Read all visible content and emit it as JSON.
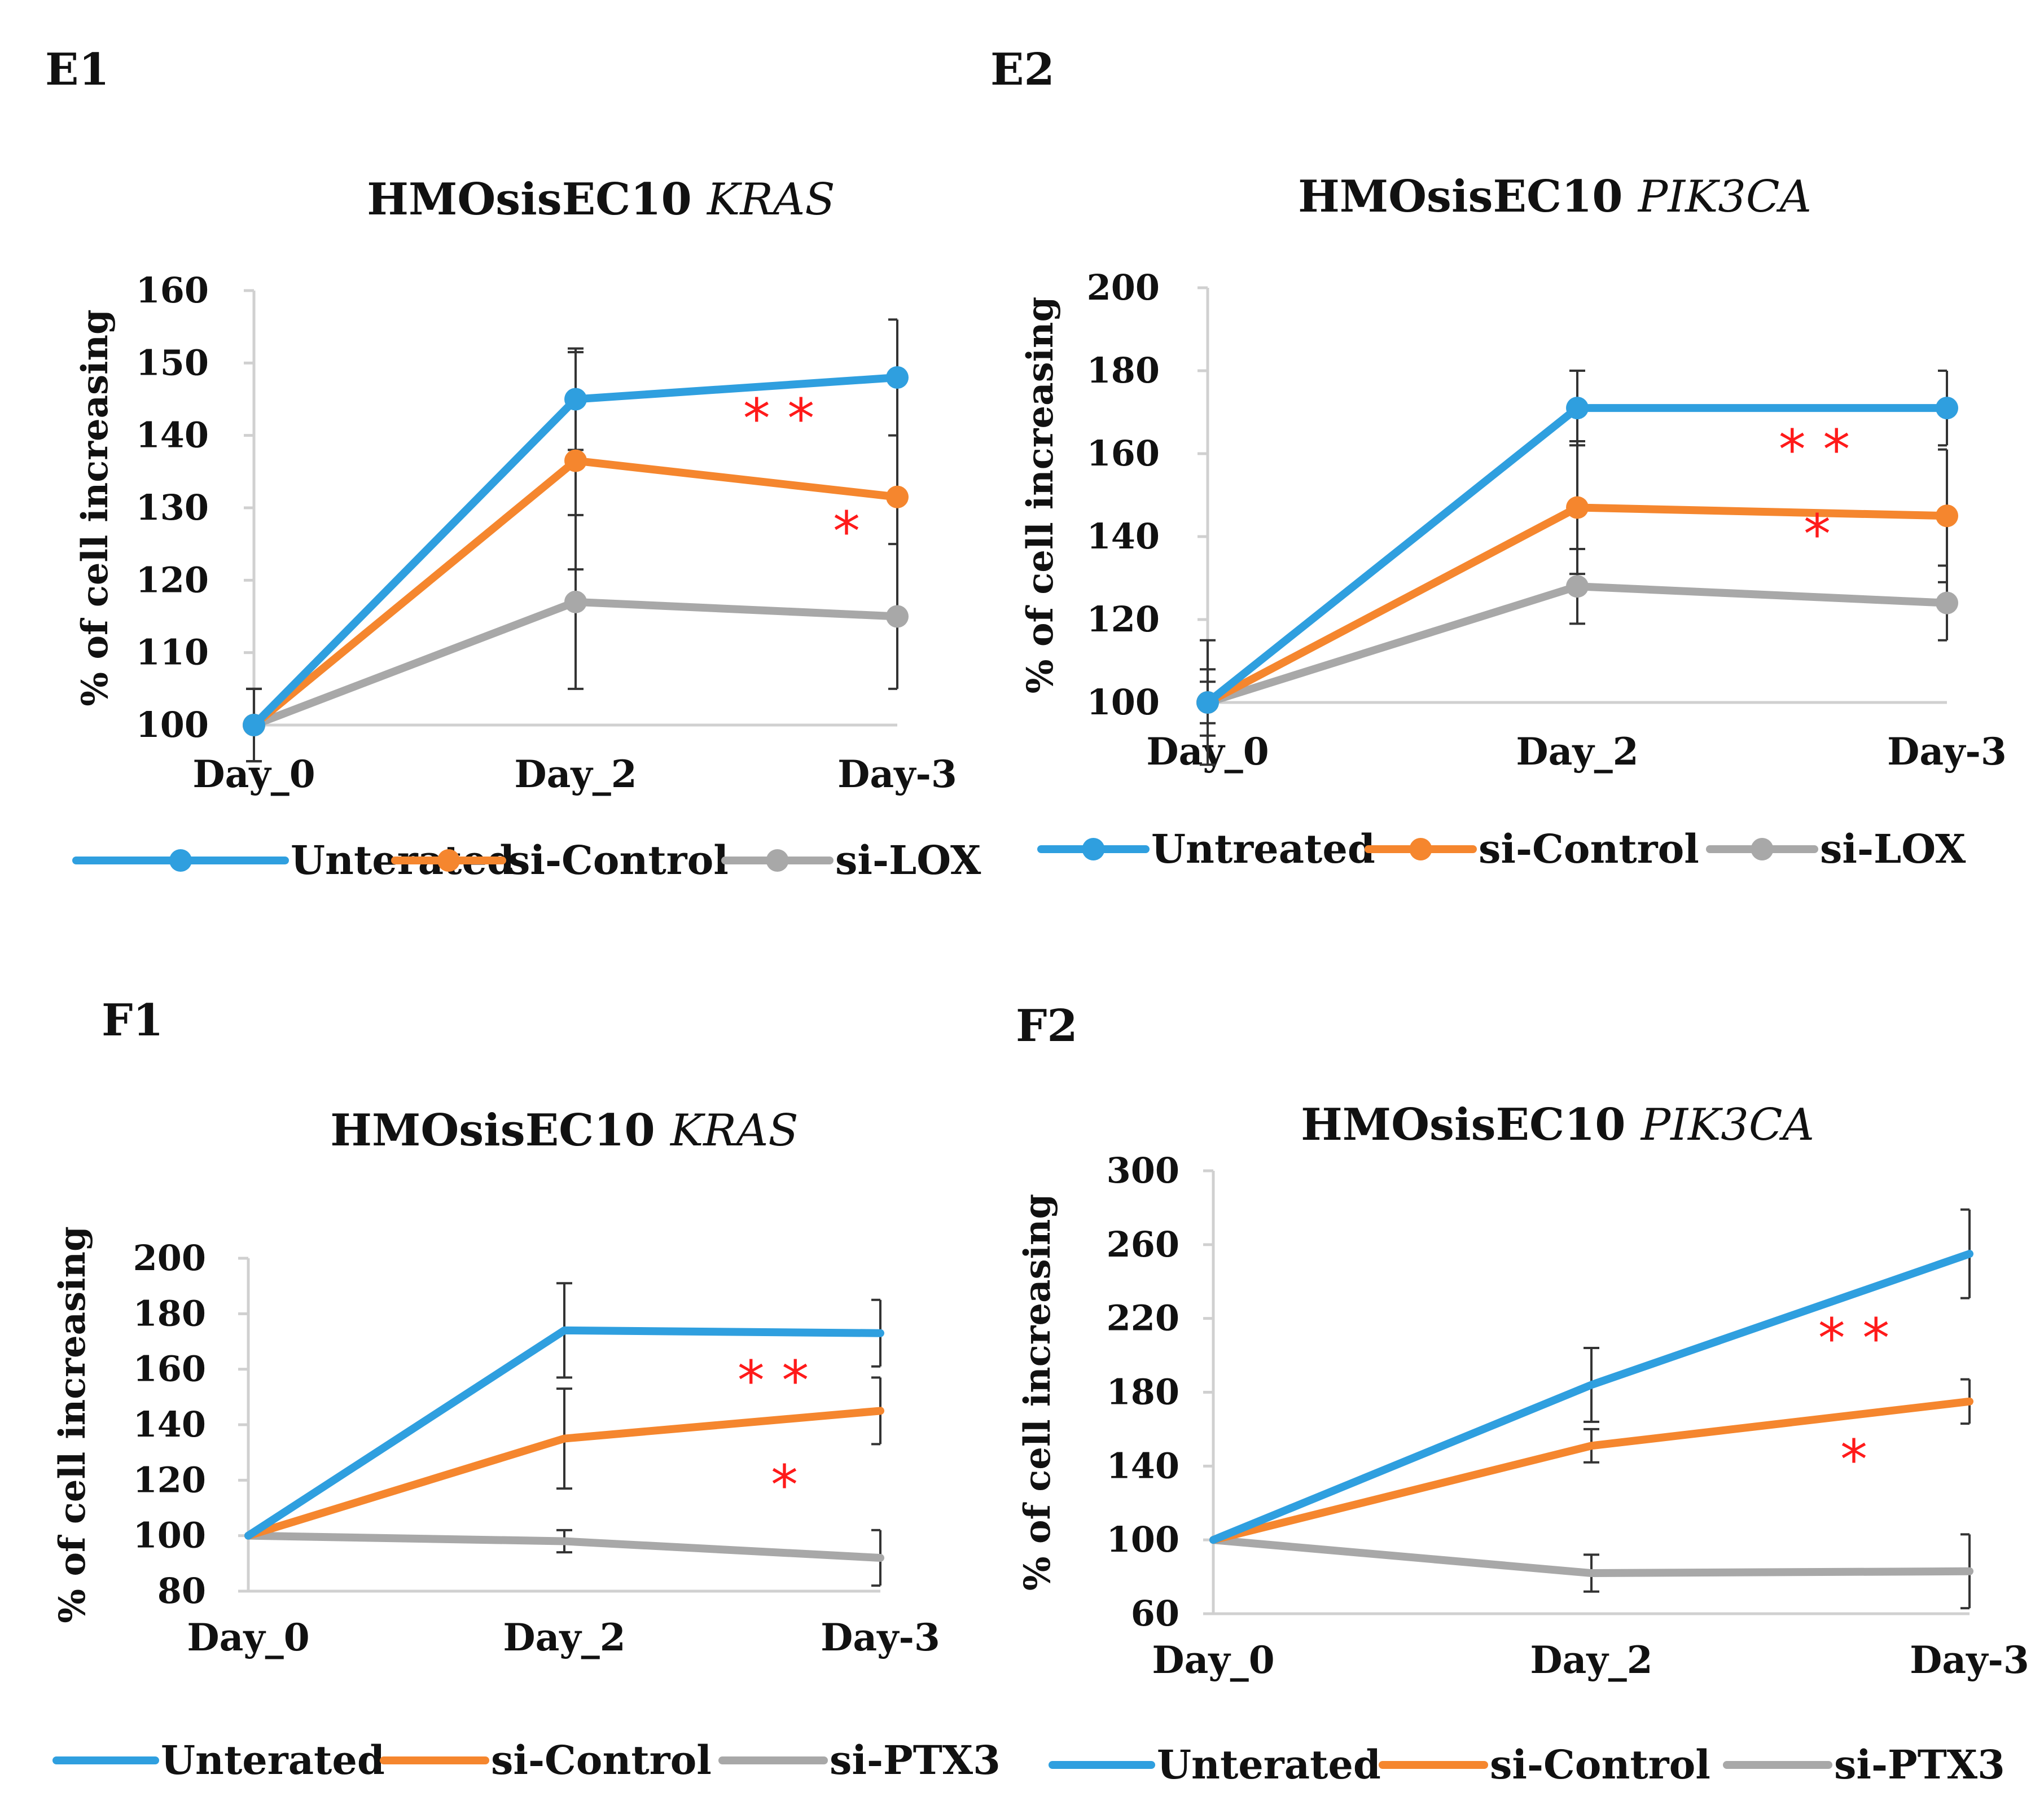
{
  "chart_data": [
    {
      "panel": "E1",
      "type": "line",
      "title": "HMOsisEC10",
      "title_gene": "KRAS",
      "ylabel": "% of cell increasing",
      "xlabel": "",
      "categories": [
        "Day_0",
        "Day_2",
        "Day-3"
      ],
      "ylim": [
        100,
        160
      ],
      "yticks": [
        100,
        110,
        120,
        130,
        140,
        150,
        160
      ],
      "markers": true,
      "series": [
        {
          "name": "Unterated",
          "color": "#2f9fdf",
          "values": [
            100,
            145,
            148
          ],
          "errors": [
            5,
            7,
            8
          ]
        },
        {
          "name": "si-Control",
          "color": "#f5862e",
          "values": [
            100,
            136.5,
            131.5
          ],
          "errors": [
            5,
            15,
            17
          ]
        },
        {
          "name": "si-LOX",
          "color": "#a8a8a8",
          "values": [
            100,
            117,
            115
          ],
          "errors": [
            5,
            12,
            10
          ]
        }
      ],
      "annotations": [
        "* *",
        "*"
      ]
    },
    {
      "panel": "E2",
      "type": "line",
      "title": "HMOsisEC10",
      "title_gene": "PIK3CA",
      "ylabel": "% of cell increasing",
      "xlabel": "",
      "categories": [
        "Day_0",
        "Day_2",
        "Day-3"
      ],
      "ylim": [
        100,
        200
      ],
      "yticks": [
        100,
        120,
        140,
        160,
        180,
        200
      ],
      "markers": true,
      "series": [
        {
          "name": "Untreated",
          "color": "#2f9fdf",
          "values": [
            100,
            171,
            171
          ],
          "errors": [
            15,
            9,
            9
          ]
        },
        {
          "name": "si-Control",
          "color": "#f5862e",
          "values": [
            100,
            147,
            145
          ],
          "errors": [
            8,
            16,
            16
          ]
        },
        {
          "name": "si-LOX",
          "color": "#a8a8a8",
          "values": [
            100,
            128,
            124
          ],
          "errors": [
            5,
            9,
            9
          ]
        }
      ],
      "annotations": [
        "* *",
        "*"
      ]
    },
    {
      "panel": "F1",
      "type": "line",
      "title": "HMOsisEC10",
      "title_gene": "KRAS",
      "ylabel": "% of cell increasing",
      "xlabel": "",
      "categories": [
        "Day_0",
        "Day_2",
        "Day-3"
      ],
      "ylim": [
        80,
        200
      ],
      "yticks": [
        80,
        100,
        120,
        140,
        160,
        180,
        200
      ],
      "markers": false,
      "series": [
        {
          "name": "Unterated",
          "color": "#2f9fdf",
          "values": [
            100,
            174,
            173
          ],
          "errors": [
            0,
            17,
            12
          ]
        },
        {
          "name": "si-Control",
          "color": "#f5862e",
          "values": [
            100,
            135,
            145
          ],
          "errors": [
            0,
            18,
            12
          ]
        },
        {
          "name": "si-PTX3",
          "color": "#a8a8a8",
          "values": [
            100,
            98,
            92
          ],
          "errors": [
            0,
            4,
            10
          ]
        }
      ],
      "annotations": [
        "* *",
        "*"
      ]
    },
    {
      "panel": "F2",
      "type": "line",
      "title": "HMOsisEC10",
      "title_gene": "PIK3CA",
      "ylabel": "% of cell increasing",
      "xlabel": "",
      "categories": [
        "Day_0",
        "Day_2",
        "Day-3"
      ],
      "ylim": [
        60,
        300
      ],
      "yticks": [
        60,
        100,
        140,
        180,
        220,
        260,
        300
      ],
      "markers": false,
      "series": [
        {
          "name": "Unterated",
          "color": "#2f9fdf",
          "values": [
            100,
            184,
            255
          ],
          "errors": [
            0,
            20,
            24
          ]
        },
        {
          "name": "si-Control",
          "color": "#f5862e",
          "values": [
            100,
            151,
            175
          ],
          "errors": [
            0,
            9,
            12
          ]
        },
        {
          "name": "si-PTX3",
          "color": "#a8a8a8",
          "values": [
            100,
            82,
            83
          ],
          "errors": [
            0,
            10,
            20
          ]
        }
      ],
      "annotations": [
        "* *",
        "*"
      ]
    }
  ]
}
